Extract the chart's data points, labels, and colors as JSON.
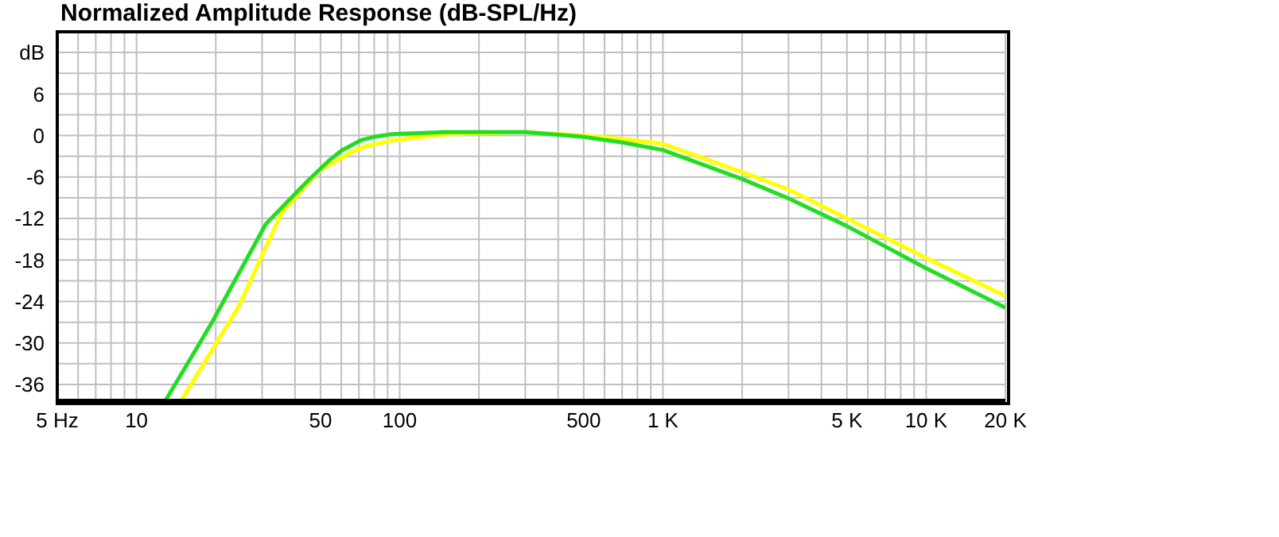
{
  "chart_data": {
    "type": "line",
    "title": "Normalized Amplitude Response (dB-SPL/Hz)",
    "log": "x",
    "grid": true,
    "marker": "none",
    "line_style": "solid",
    "xlim": [
      5,
      20000
    ],
    "xticks": [
      {
        "value": 5,
        "label": "5 Hz"
      },
      {
        "value": 6,
        "label": null
      },
      {
        "value": 7,
        "label": null
      },
      {
        "value": 8,
        "label": null
      },
      {
        "value": 9,
        "label": null
      },
      10,
      {
        "value": 20,
        "label": null
      },
      {
        "value": 30,
        "label": null
      },
      {
        "value": 40,
        "label": null
      },
      50,
      {
        "value": 60,
        "label": null
      },
      {
        "value": 70,
        "label": null
      },
      {
        "value": 80,
        "label": null
      },
      {
        "value": 90,
        "label": null
      },
      100,
      {
        "value": 200,
        "label": null
      },
      {
        "value": 300,
        "label": null
      },
      {
        "value": 400,
        "label": null
      },
      500,
      {
        "value": 600,
        "label": null
      },
      {
        "value": 700,
        "label": null
      },
      {
        "value": 800,
        "label": null
      },
      {
        "value": 900,
        "label": null
      },
      {
        "value": 1000,
        "label": "1 K"
      },
      {
        "value": 2000,
        "label": null
      },
      {
        "value": 3000,
        "label": null
      },
      {
        "value": 4000,
        "label": null
      },
      {
        "value": 5000,
        "label": "5 K"
      },
      {
        "value": 6000,
        "label": null
      },
      {
        "value": 7000,
        "label": null
      },
      {
        "value": 8000,
        "label": null
      },
      {
        "value": 9000,
        "label": null
      },
      {
        "value": 10000,
        "label": "10 K"
      },
      {
        "value": 20000,
        "label": "20 K"
      }
    ],
    "ylim": [
      -38.3,
      15
    ],
    "yticks": [
      -36,
      {
        "value": -33,
        "label": null
      },
      -30,
      {
        "value": -27,
        "label": null
      },
      -24,
      {
        "value": -21,
        "label": null
      },
      -18,
      {
        "value": -15,
        "label": null
      },
      -12,
      {
        "value": -9,
        "label": null
      },
      -6,
      {
        "value": -3,
        "label": null
      },
      0,
      {
        "value": 3,
        "label": null
      },
      6,
      {
        "value": 9,
        "label": null
      },
      {
        "value": 12,
        "label": "dB"
      }
    ],
    "series": [
      {
        "color": "#ffff00",
        "x": [
          14.8,
          24.4,
          35.6,
          49,
          57,
          64.5,
          75,
          94,
          120,
          155,
          300,
          500,
          700,
          1000,
          2000,
          3000,
          5000,
          10000,
          20000
        ],
        "values": [
          -38.3,
          -24.8,
          -11.2,
          -5.2,
          -3.7,
          -2.5,
          -1.5,
          -0.7,
          -0.2,
          0.2,
          0.5,
          0,
          -0.5,
          -1.2,
          -5.3,
          -7.8,
          -12,
          -17.7,
          -23.2
        ]
      },
      {
        "color": "#22dd22",
        "x": [
          12.9,
          19.3,
          31,
          44.6,
          54,
          60,
          71,
          80,
          94,
          150,
          300,
          500,
          700,
          1000,
          2000,
          3000,
          5000,
          10000,
          20000
        ],
        "values": [
          -38.3,
          -27.1,
          -12.8,
          -6.6,
          -3.6,
          -2.2,
          -0.7,
          -0.2,
          0.2,
          0.5,
          0.5,
          -0.2,
          -1,
          -2.1,
          -6.3,
          -9.1,
          -13.1,
          -19.2,
          -24.9
        ]
      }
    ]
  }
}
